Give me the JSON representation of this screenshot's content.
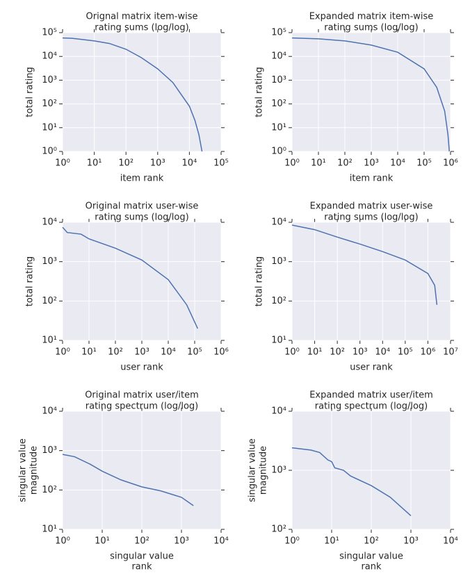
{
  "chart_data": [
    {
      "type": "line",
      "title": [
        "Orignal matrix item-wise",
        "rating sums (log/log)"
      ],
      "xlabel": [
        "item rank"
      ],
      "ylabel": [
        "total rating"
      ],
      "xscale": "log",
      "yscale": "log",
      "grid": true,
      "color": "#4c72b0",
      "xlim": [
        1,
        100000
      ],
      "ylim": [
        1,
        100000
      ],
      "xticks": [
        {
          "value": 1,
          "label": "10⁰"
        },
        {
          "value": 10,
          "label": "10¹"
        },
        {
          "value": 100,
          "label": "10²"
        },
        {
          "value": 1000,
          "label": "10³"
        },
        {
          "value": 10000,
          "label": "10⁴"
        },
        {
          "value": 100000,
          "label": "10⁵"
        }
      ],
      "yticks": [
        {
          "value": 1,
          "label": "10⁰"
        },
        {
          "value": 10,
          "label": "10¹"
        },
        {
          "value": 100,
          "label": "10²"
        },
        {
          "value": 1000,
          "label": "10³"
        },
        {
          "value": 10000,
          "label": "10⁴"
        },
        {
          "value": 100000,
          "label": "10⁵"
        }
      ],
      "x": [
        1,
        2,
        5,
        10,
        30,
        100,
        300,
        1000,
        3000,
        10000,
        15000,
        20000,
        25000
      ],
      "values": [
        60000,
        58000,
        50000,
        45000,
        35000,
        20000,
        9000,
        3000,
        800,
        80,
        20,
        5,
        1
      ]
    },
    {
      "type": "line",
      "title": [
        "Expanded matrix item-wise",
        "rating sums (log/log)"
      ],
      "xlabel": [
        "item rank"
      ],
      "ylabel": [
        "total rating"
      ],
      "xscale": "log",
      "yscale": "log",
      "grid": true,
      "color": "#4c72b0",
      "xlim": [
        1,
        1000000
      ],
      "ylim": [
        1,
        100000
      ],
      "xticks": [
        {
          "value": 1,
          "label": "10⁰"
        },
        {
          "value": 10,
          "label": "10¹"
        },
        {
          "value": 100,
          "label": "10²"
        },
        {
          "value": 1000,
          "label": "10³"
        },
        {
          "value": 10000,
          "label": "10⁴"
        },
        {
          "value": 100000,
          "label": "10⁵"
        },
        {
          "value": 1000000,
          "label": "10⁶"
        }
      ],
      "yticks": [
        {
          "value": 1,
          "label": "10⁰"
        },
        {
          "value": 10,
          "label": "10¹"
        },
        {
          "value": 100,
          "label": "10²"
        },
        {
          "value": 1000,
          "label": "10³"
        },
        {
          "value": 10000,
          "label": "10⁴"
        },
        {
          "value": 100000,
          "label": "10⁵"
        }
      ],
      "x": [
        1,
        10,
        100,
        1000,
        10000,
        100000,
        300000,
        600000,
        800000,
        900000
      ],
      "values": [
        60000,
        55000,
        45000,
        30000,
        15000,
        3000,
        500,
        50,
        5,
        1
      ]
    },
    {
      "type": "line",
      "title": [
        "Original matrix user-wise",
        "rating sums (log/log)"
      ],
      "xlabel": [
        "user rank"
      ],
      "ylabel": [
        "total rating"
      ],
      "xscale": "log",
      "yscale": "log",
      "grid": true,
      "color": "#4c72b0",
      "xlim": [
        1,
        1000000
      ],
      "ylim": [
        10,
        10000
      ],
      "xticks": [
        {
          "value": 1,
          "label": "10⁰"
        },
        {
          "value": 10,
          "label": "10¹"
        },
        {
          "value": 100,
          "label": "10²"
        },
        {
          "value": 1000,
          "label": "10³"
        },
        {
          "value": 10000,
          "label": "10⁴"
        },
        {
          "value": 100000,
          "label": "10⁵"
        },
        {
          "value": 1000000,
          "label": "10⁶"
        }
      ],
      "yticks": [
        {
          "value": 10,
          "label": "10¹"
        },
        {
          "value": 100,
          "label": "10²"
        },
        {
          "value": 1000,
          "label": "10³"
        },
        {
          "value": 10000,
          "label": "10⁴"
        }
      ],
      "x": [
        1,
        1.5,
        5,
        10,
        100,
        1000,
        10000,
        50000,
        130000
      ],
      "values": [
        7500,
        5500,
        5000,
        3800,
        2200,
        1100,
        350,
        80,
        20
      ]
    },
    {
      "type": "line",
      "title": [
        "Expanded matrix user-wise",
        "rating sums (log/log)"
      ],
      "xlabel": [
        "user rank"
      ],
      "ylabel": [
        "total rating"
      ],
      "xscale": "log",
      "yscale": "log",
      "grid": true,
      "color": "#4c72b0",
      "xlim": [
        1,
        10000000
      ],
      "ylim": [
        10,
        10000
      ],
      "xticks": [
        {
          "value": 1,
          "label": "10⁰"
        },
        {
          "value": 10,
          "label": "10¹"
        },
        {
          "value": 100,
          "label": "10²"
        },
        {
          "value": 1000,
          "label": "10³"
        },
        {
          "value": 10000,
          "label": "10⁴"
        },
        {
          "value": 100000,
          "label": "10⁵"
        },
        {
          "value": 1000000,
          "label": "10⁶"
        },
        {
          "value": 10000000,
          "label": "10⁷"
        }
      ],
      "yticks": [
        {
          "value": 10,
          "label": "10¹"
        },
        {
          "value": 100,
          "label": "10²"
        },
        {
          "value": 1000,
          "label": "10³"
        },
        {
          "value": 10000,
          "label": "10⁴"
        }
      ],
      "x": [
        1,
        10,
        100,
        1000,
        10000,
        100000,
        1000000,
        2000000,
        2500000
      ],
      "values": [
        8500,
        6500,
        4200,
        2800,
        1800,
        1100,
        500,
        250,
        80
      ]
    },
    {
      "type": "line",
      "title": [
        "Original matrix user/item",
        "rating spectrum (log/log)"
      ],
      "xlabel": [
        "singular value",
        "rank"
      ],
      "ylabel": [
        "singular value",
        "magnitude"
      ],
      "xscale": "log",
      "yscale": "log",
      "grid": true,
      "color": "#4c72b0",
      "xlim": [
        1,
        10000
      ],
      "ylim": [
        10,
        10000
      ],
      "xticks": [
        {
          "value": 1,
          "label": "10⁰"
        },
        {
          "value": 10,
          "label": "10¹"
        },
        {
          "value": 100,
          "label": "10²"
        },
        {
          "value": 1000,
          "label": "10³"
        },
        {
          "value": 10000,
          "label": "10⁴"
        }
      ],
      "yticks": [
        {
          "value": 10,
          "label": "10¹"
        },
        {
          "value": 100,
          "label": "10²"
        },
        {
          "value": 1000,
          "label": "10³"
        },
        {
          "value": 10000,
          "label": "10⁴"
        }
      ],
      "x": [
        1,
        2,
        5,
        10,
        30,
        100,
        300,
        1000,
        2000
      ],
      "values": [
        800,
        700,
        450,
        300,
        180,
        120,
        95,
        65,
        40
      ]
    },
    {
      "type": "line",
      "title": [
        "Expanded matrix user/item",
        "rating spectrum (log/log)"
      ],
      "xlabel": [
        "singular value",
        "rank"
      ],
      "ylabel": [
        "singular value",
        "magnitude"
      ],
      "xscale": "log",
      "yscale": "log",
      "grid": true,
      "color": "#4c72b0",
      "xlim": [
        1,
        10000
      ],
      "ylim": [
        100,
        10000
      ],
      "xticks": [
        {
          "value": 1,
          "label": "10⁰"
        },
        {
          "value": 10,
          "label": "10¹"
        },
        {
          "value": 100,
          "label": "10²"
        },
        {
          "value": 1000,
          "label": "10³"
        },
        {
          "value": 10000,
          "label": "10⁴"
        }
      ],
      "yticks": [
        {
          "value": 100,
          "label": "10²"
        },
        {
          "value": 1000,
          "label": "10³"
        },
        {
          "value": 10000,
          "label": "10⁴"
        }
      ],
      "x": [
        1,
        3,
        5,
        8,
        10,
        12,
        20,
        30,
        100,
        300,
        1000
      ],
      "values": [
        2400,
        2200,
        2000,
        1500,
        1400,
        1100,
        1000,
        800,
        550,
        350,
        170
      ]
    }
  ]
}
